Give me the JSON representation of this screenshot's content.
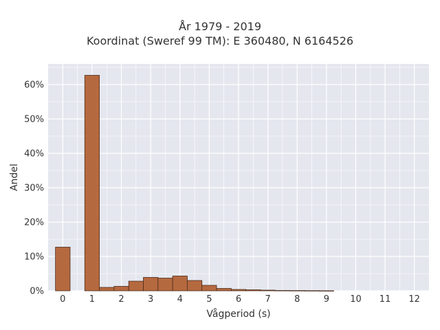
{
  "chart_data": {
    "type": "bar",
    "title": "År 1979 - 2019",
    "subtitle": "Koordinat (Sweref 99 TM): E 360480, N 6164526",
    "xlabel": "Vågperiod (s)",
    "ylabel": "Andel",
    "xlim": [
      -0.5,
      12.5
    ],
    "ylim": [
      0,
      0.66
    ],
    "x_ticks": [
      "0",
      "1",
      "2",
      "3",
      "4",
      "5",
      "6",
      "7",
      "8",
      "9",
      "10",
      "11",
      "12"
    ],
    "y_ticks": [
      "0%",
      "10%",
      "20%",
      "30%",
      "40%",
      "50%",
      "60%"
    ],
    "y_tick_values": [
      0,
      0.1,
      0.2,
      0.3,
      0.4,
      0.5,
      0.6
    ],
    "bar_width": 0.5,
    "bars": [
      {
        "x": 0.0,
        "value": 0.127
      },
      {
        "x": 1.0,
        "value": 0.627
      },
      {
        "x": 1.5,
        "value": 0.01
      },
      {
        "x": 2.0,
        "value": 0.013
      },
      {
        "x": 2.5,
        "value": 0.028
      },
      {
        "x": 3.0,
        "value": 0.039
      },
      {
        "x": 3.5,
        "value": 0.037
      },
      {
        "x": 4.0,
        "value": 0.043
      },
      {
        "x": 4.5,
        "value": 0.03
      },
      {
        "x": 5.0,
        "value": 0.016
      },
      {
        "x": 5.5,
        "value": 0.007
      },
      {
        "x": 6.0,
        "value": 0.004
      },
      {
        "x": 6.5,
        "value": 0.003
      },
      {
        "x": 7.0,
        "value": 0.002
      },
      {
        "x": 7.5,
        "value": 0.001
      },
      {
        "x": 8.0,
        "value": 0.0008
      },
      {
        "x": 8.5,
        "value": 0.0005
      },
      {
        "x": 9.0,
        "value": 0.0003
      }
    ],
    "bar_color": "#b5693f",
    "bar_edge_color": "#4a2c1c",
    "background_color": "#e5e7ef",
    "grid_color": "#ffffff",
    "grid": true
  }
}
